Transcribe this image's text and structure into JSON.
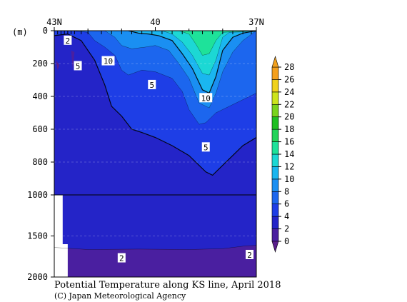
{
  "chart_data": {
    "type": "heatmap",
    "title": "Potential Temperature along KS line, April 2018",
    "credit": "(C) Japan Meteorological Agency",
    "y_unit_label": "(m)",
    "x_ticks": [
      {
        "lat": 43,
        "label": "43N"
      },
      {
        "lat": 40,
        "label": "40"
      },
      {
        "lat": 37,
        "label": "37N"
      }
    ],
    "y_ticks": [
      {
        "depth": 0,
        "label": "0"
      },
      {
        "depth": 200,
        "label": "200"
      },
      {
        "depth": 400,
        "label": "400"
      },
      {
        "depth": 600,
        "label": "600"
      },
      {
        "depth": 800,
        "label": "800"
      },
      {
        "depth": 1000,
        "label": "1000"
      },
      {
        "depth": 1500,
        "label": "1500"
      },
      {
        "depth": 2000,
        "label": "2000"
      }
    ],
    "colorbar": {
      "levels": [
        0,
        2,
        4,
        6,
        8,
        10,
        12,
        14,
        16,
        18,
        20,
        22,
        24,
        26,
        28
      ],
      "labels": [
        "0",
        "2",
        "4",
        "6",
        "8",
        "10",
        "12",
        "14",
        "16",
        "18",
        "20",
        "22",
        "24",
        "26",
        "28"
      ],
      "colors": [
        "#4a1fa0",
        "#2424c8",
        "#1e3ee6",
        "#1c66ee",
        "#1a8ff2",
        "#1ab6f0",
        "#1cd8d4",
        "#1ee29a",
        "#22d45a",
        "#1ec022",
        "#7ad41c",
        "#cde41c",
        "#f0d21c",
        "#f4a01c"
      ],
      "under_color": "#5a1e8c",
      "over_color": "#f0a01e"
    },
    "contour_labels": [
      {
        "text": "2",
        "lat": 42.6,
        "depth": 60
      },
      {
        "text": "5",
        "lat": 42.3,
        "depth": 215
      },
      {
        "text": "10",
        "lat": 41.4,
        "depth": 185
      },
      {
        "text": "5",
        "lat": 40.1,
        "depth": 330
      },
      {
        "text": "10",
        "lat": 38.5,
        "depth": 410
      },
      {
        "text": "5",
        "lat": 38.5,
        "depth": 710
      },
      {
        "text": "2",
        "lat": 41.0,
        "depth": 1770
      },
      {
        "text": "2",
        "lat": 37.2,
        "depth": 1730
      }
    ],
    "bands": [
      {
        "class": "0-2",
        "top": [
          [
            43.0,
            1640
          ],
          [
            42.0,
            1665
          ],
          [
            40.5,
            1660
          ],
          [
            39.0,
            1665
          ],
          [
            38.0,
            1655
          ],
          [
            37.3,
            1620
          ],
          [
            37.0,
            1615
          ]
        ]
      },
      {
        "class": "4-6",
        "top": [
          [
            43.0,
            30
          ],
          [
            42.6,
            20
          ],
          [
            42.2,
            60
          ],
          [
            41.8,
            180
          ],
          [
            41.5,
            330
          ],
          [
            41.3,
            460
          ],
          [
            41.0,
            520
          ],
          [
            40.7,
            600
          ],
          [
            40.4,
            620
          ],
          [
            40.0,
            650
          ],
          [
            39.5,
            700
          ],
          [
            39.0,
            760
          ],
          [
            38.5,
            860
          ],
          [
            38.3,
            880
          ],
          [
            38.0,
            820
          ],
          [
            37.7,
            760
          ],
          [
            37.4,
            700
          ],
          [
            37.0,
            650
          ]
        ]
      },
      {
        "class": "6-8",
        "top": [
          [
            42.9,
            0
          ],
          [
            42.5,
            0
          ],
          [
            42.0,
            10
          ],
          [
            41.8,
            60
          ],
          [
            41.5,
            100
          ],
          [
            41.2,
            150
          ],
          [
            41.0,
            240
          ],
          [
            40.8,
            270
          ],
          [
            40.4,
            240
          ],
          [
            40.0,
            250
          ],
          [
            39.5,
            290
          ],
          [
            39.2,
            370
          ],
          [
            39.0,
            480
          ],
          [
            38.7,
            570
          ],
          [
            38.5,
            560
          ],
          [
            38.2,
            500
          ],
          [
            37.9,
            470
          ],
          [
            37.5,
            430
          ],
          [
            37.0,
            380
          ]
        ]
      },
      {
        "class": "8-10",
        "top": [
          [
            41.5,
            0
          ],
          [
            41.2,
            40
          ],
          [
            41.0,
            90
          ],
          [
            40.7,
            110
          ],
          [
            40.3,
            100
          ],
          [
            40.0,
            90
          ],
          [
            39.6,
            120
          ],
          [
            39.3,
            200
          ],
          [
            39.0,
            290
          ],
          [
            38.7,
            440
          ],
          [
            38.4,
            470
          ],
          [
            38.2,
            380
          ],
          [
            38.0,
            250
          ],
          [
            37.7,
            130
          ],
          [
            37.4,
            60
          ],
          [
            37.0,
            0
          ]
        ]
      },
      {
        "class": "10-12",
        "top": [
          [
            40.8,
            0
          ],
          [
            40.5,
            15
          ],
          [
            40.2,
            20
          ],
          [
            39.9,
            30
          ],
          [
            39.5,
            60
          ],
          [
            39.2,
            140
          ],
          [
            38.9,
            230
          ],
          [
            38.6,
            360
          ],
          [
            38.4,
            380
          ],
          [
            38.2,
            280
          ],
          [
            38.0,
            120
          ],
          [
            37.7,
            40
          ],
          [
            37.4,
            15
          ],
          [
            37.0,
            0
          ]
        ]
      },
      {
        "class": "12-14",
        "top": [
          [
            39.8,
            0
          ],
          [
            39.5,
            20
          ],
          [
            39.2,
            70
          ],
          [
            38.9,
            150
          ],
          [
            38.6,
            260
          ],
          [
            38.4,
            270
          ],
          [
            38.2,
            180
          ],
          [
            38.0,
            40
          ],
          [
            37.8,
            10
          ],
          [
            37.0,
            5
          ]
        ]
      },
      {
        "class": "14-16",
        "top": [
          [
            39.3,
            0
          ],
          [
            39.0,
            20
          ],
          [
            38.8,
            80
          ],
          [
            38.6,
            150
          ],
          [
            38.4,
            140
          ],
          [
            38.2,
            60
          ],
          [
            38.0,
            10
          ],
          [
            37.0,
            0
          ]
        ]
      }
    ]
  }
}
